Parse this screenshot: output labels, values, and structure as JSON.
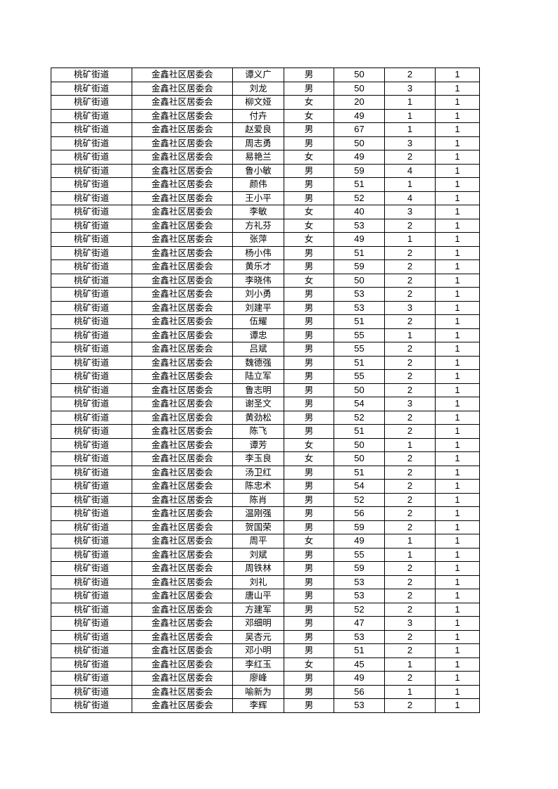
{
  "rows": [
    [
      "桃矿街道",
      "金鑫社区居委会",
      "谭义广",
      "男",
      "50",
      "2",
      "1"
    ],
    [
      "桃矿街道",
      "金鑫社区居委会",
      "刘龙",
      "男",
      "50",
      "3",
      "1"
    ],
    [
      "桃矿街道",
      "金鑫社区居委会",
      "柳文娅",
      "女",
      "20",
      "1",
      "1"
    ],
    [
      "桃矿街道",
      "金鑫社区居委会",
      "付卉",
      "女",
      "49",
      "1",
      "1"
    ],
    [
      "桃矿街道",
      "金鑫社区居委会",
      "赵爱良",
      "男",
      "67",
      "1",
      "1"
    ],
    [
      "桃矿街道",
      "金鑫社区居委会",
      "周志勇",
      "男",
      "50",
      "3",
      "1"
    ],
    [
      "桃矿街道",
      "金鑫社区居委会",
      "易艳兰",
      "女",
      "49",
      "2",
      "1"
    ],
    [
      "桃矿街道",
      "金鑫社区居委会",
      "鲁小敏",
      "男",
      "59",
      "4",
      "1"
    ],
    [
      "桃矿街道",
      "金鑫社区居委会",
      "颜伟",
      "男",
      "51",
      "1",
      "1"
    ],
    [
      "桃矿街道",
      "金鑫社区居委会",
      "王小平",
      "男",
      "52",
      "4",
      "1"
    ],
    [
      "桃矿街道",
      "金鑫社区居委会",
      "李敏",
      "女",
      "40",
      "3",
      "1"
    ],
    [
      "桃矿街道",
      "金鑫社区居委会",
      "方礼芬",
      "女",
      "53",
      "2",
      "1"
    ],
    [
      "桃矿街道",
      "金鑫社区居委会",
      "张萍",
      "女",
      "49",
      "1",
      "1"
    ],
    [
      "桃矿街道",
      "金鑫社区居委会",
      "杨小伟",
      "男",
      "51",
      "2",
      "1"
    ],
    [
      "桃矿街道",
      "金鑫社区居委会",
      "黄乐才",
      "男",
      "59",
      "2",
      "1"
    ],
    [
      "桃矿街道",
      "金鑫社区居委会",
      "李晓伟",
      "女",
      "50",
      "2",
      "1"
    ],
    [
      "桃矿街道",
      "金鑫社区居委会",
      "刘小勇",
      "男",
      "53",
      "2",
      "1"
    ],
    [
      "桃矿街道",
      "金鑫社区居委会",
      "刘建平",
      "男",
      "53",
      "3",
      "1"
    ],
    [
      "桃矿街道",
      "金鑫社区居委会",
      "伍耀",
      "男",
      "51",
      "2",
      "1"
    ],
    [
      "桃矿街道",
      "金鑫社区居委会",
      "谭忠",
      "男",
      "55",
      "1",
      "1"
    ],
    [
      "桃矿街道",
      "金鑫社区居委会",
      "吕斌",
      "男",
      "55",
      "2",
      "1"
    ],
    [
      "桃矿街道",
      "金鑫社区居委会",
      "魏德强",
      "男",
      "51",
      "2",
      "1"
    ],
    [
      "桃矿街道",
      "金鑫社区居委会",
      "陆立军",
      "男",
      "55",
      "2",
      "1"
    ],
    [
      "桃矿街道",
      "金鑫社区居委会",
      "鲁志明",
      "男",
      "50",
      "2",
      "1"
    ],
    [
      "桃矿街道",
      "金鑫社区居委会",
      "谢圣文",
      "男",
      "54",
      "3",
      "1"
    ],
    [
      "桃矿街道",
      "金鑫社区居委会",
      "黄劲松",
      "男",
      "52",
      "2",
      "1"
    ],
    [
      "桃矿街道",
      "金鑫社区居委会",
      "陈飞",
      "男",
      "51",
      "2",
      "1"
    ],
    [
      "桃矿街道",
      "金鑫社区居委会",
      "谭芳",
      "女",
      "50",
      "1",
      "1"
    ],
    [
      "桃矿街道",
      "金鑫社区居委会",
      "李玉良",
      "女",
      "50",
      "2",
      "1"
    ],
    [
      "桃矿街道",
      "金鑫社区居委会",
      "汤卫红",
      "男",
      "51",
      "2",
      "1"
    ],
    [
      "桃矿街道",
      "金鑫社区居委会",
      "陈忠术",
      "男",
      "54",
      "2",
      "1"
    ],
    [
      "桃矿街道",
      "金鑫社区居委会",
      "陈肖",
      "男",
      "52",
      "2",
      "1"
    ],
    [
      "桃矿街道",
      "金鑫社区居委会",
      "温刚强",
      "男",
      "56",
      "2",
      "1"
    ],
    [
      "桃矿街道",
      "金鑫社区居委会",
      "贺国荣",
      "男",
      "59",
      "2",
      "1"
    ],
    [
      "桃矿街道",
      "金鑫社区居委会",
      "周平",
      "女",
      "49",
      "1",
      "1"
    ],
    [
      "桃矿街道",
      "金鑫社区居委会",
      "刘斌",
      "男",
      "55",
      "1",
      "1"
    ],
    [
      "桃矿街道",
      "金鑫社区居委会",
      "周铁林",
      "男",
      "59",
      "2",
      "1"
    ],
    [
      "桃矿街道",
      "金鑫社区居委会",
      "刘礼",
      "男",
      "53",
      "2",
      "1"
    ],
    [
      "桃矿街道",
      "金鑫社区居委会",
      "唐山平",
      "男",
      "53",
      "2",
      "1"
    ],
    [
      "桃矿街道",
      "金鑫社区居委会",
      "方建军",
      "男",
      "52",
      "2",
      "1"
    ],
    [
      "桃矿街道",
      "金鑫社区居委会",
      "邓细明",
      "男",
      "47",
      "3",
      "1"
    ],
    [
      "桃矿街道",
      "金鑫社区居委会",
      "吴杏元",
      "男",
      "53",
      "2",
      "1"
    ],
    [
      "桃矿街道",
      "金鑫社区居委会",
      "邓小明",
      "男",
      "51",
      "2",
      "1"
    ],
    [
      "桃矿街道",
      "金鑫社区居委会",
      "李红玉",
      "女",
      "45",
      "1",
      "1"
    ],
    [
      "桃矿街道",
      "金鑫社区居委会",
      "廖峰",
      "男",
      "49",
      "2",
      "1"
    ],
    [
      "桃矿街道",
      "金鑫社区居委会",
      "喻新为",
      "男",
      "56",
      "1",
      "1"
    ],
    [
      "桃矿街道",
      "金鑫社区居委会",
      "李辉",
      "男",
      "53",
      "2",
      "1"
    ]
  ]
}
